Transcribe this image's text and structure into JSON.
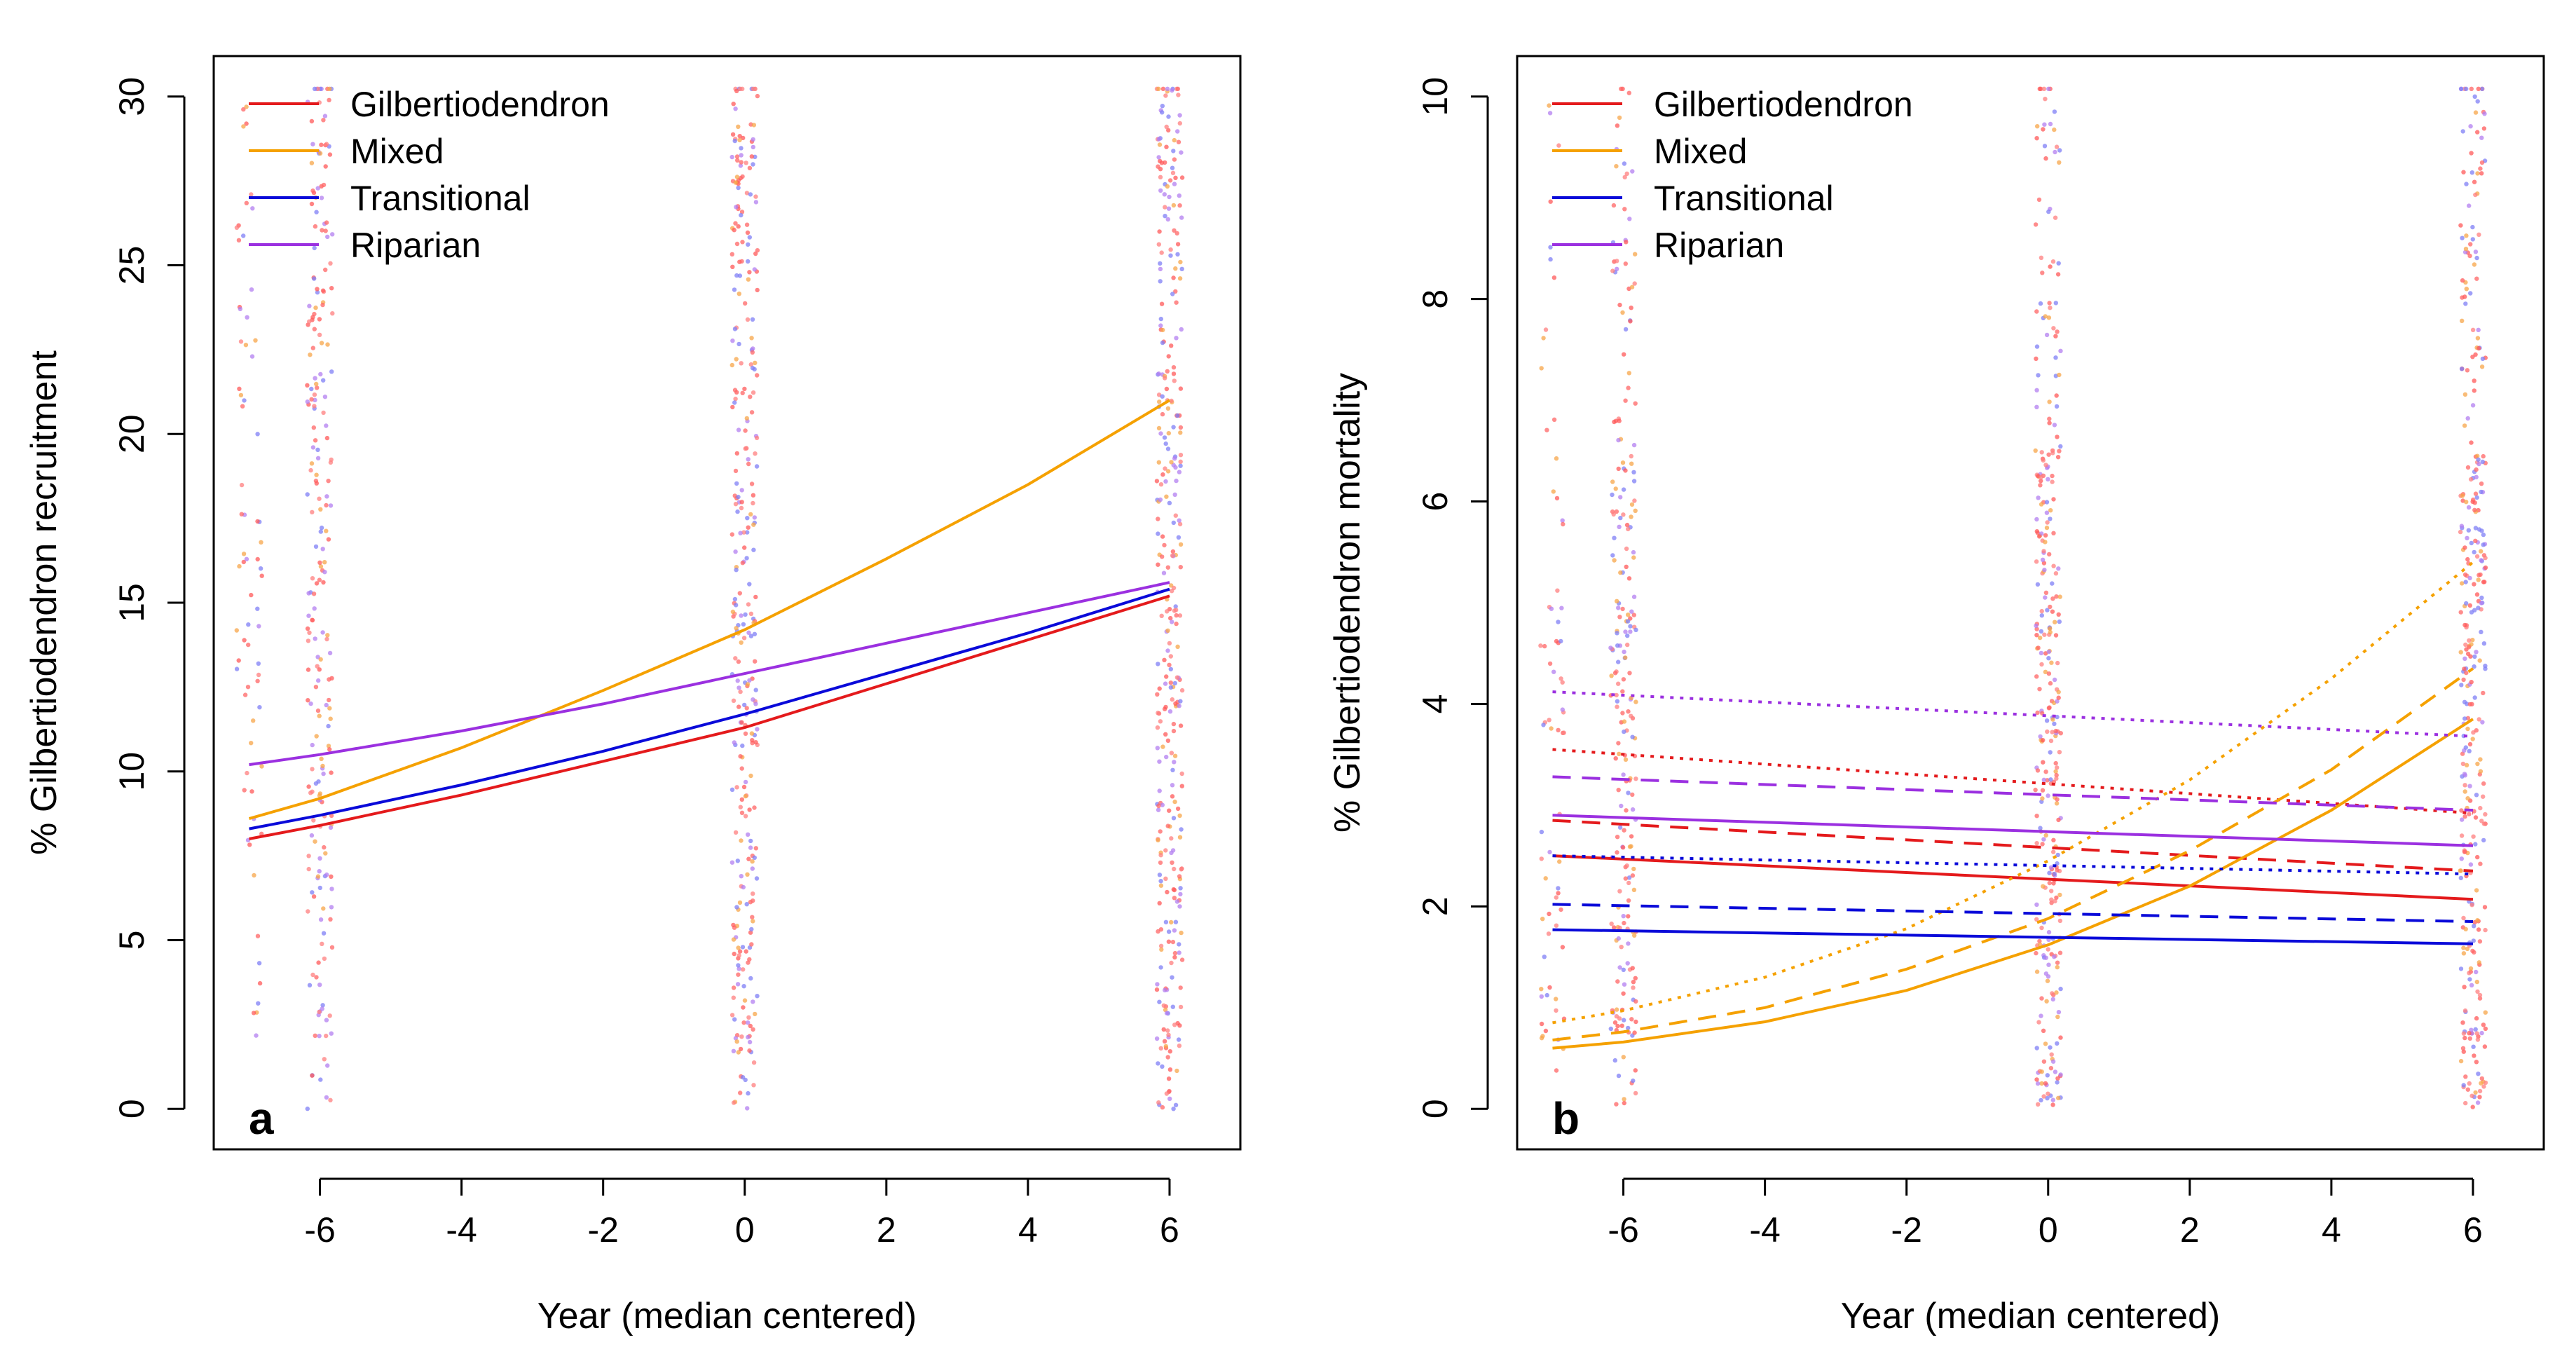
{
  "chart_data": [
    {
      "type": "line",
      "panel_label": "a",
      "xlabel": "Year (median centered)",
      "ylabel": "% Gilbertiodendron recruitment",
      "xlim": [
        -7.5,
        7
      ],
      "ylim": [
        -1.2,
        31.2
      ],
      "xticks": [
        -6,
        -4,
        -2,
        0,
        2,
        4,
        6
      ],
      "yticks": [
        0,
        5,
        10,
        15,
        20,
        25,
        30
      ],
      "legend_position": "top-left",
      "legend": [
        {
          "label": "Gilbertiodendron",
          "color": "#e41a1c"
        },
        {
          "label": "Mixed",
          "color": "#f5a100"
        },
        {
          "label": "Transitional",
          "color": "#0a0ad9"
        },
        {
          "label": "Riparian",
          "color": "#9b30e0"
        }
      ],
      "series": [
        {
          "name": "Gilbertiodendron",
          "color": "#e41a1c",
          "style": "solid",
          "x": [
            -7,
            -6,
            -4,
            -2,
            0,
            2,
            4,
            6
          ],
          "y": [
            8.0,
            8.4,
            9.3,
            10.3,
            11.3,
            12.6,
            13.9,
            15.2
          ]
        },
        {
          "name": "Mixed",
          "color": "#f5a100",
          "style": "solid",
          "x": [
            -7,
            -6,
            -4,
            -2,
            0,
            2,
            4,
            6
          ],
          "y": [
            8.6,
            9.2,
            10.7,
            12.4,
            14.2,
            16.3,
            18.5,
            21.0
          ]
        },
        {
          "name": "Transitional",
          "color": "#0a0ad9",
          "style": "solid",
          "x": [
            -7,
            -6,
            -4,
            -2,
            0,
            2,
            4,
            6
          ],
          "y": [
            8.3,
            8.7,
            9.6,
            10.6,
            11.7,
            12.9,
            14.1,
            15.4
          ]
        },
        {
          "name": "Riparian",
          "color": "#9b30e0",
          "style": "solid",
          "x": [
            -7,
            -6,
            -4,
            -2,
            0,
            2,
            4,
            6
          ],
          "y": [
            10.2,
            10.5,
            11.2,
            12.0,
            12.9,
            13.8,
            14.7,
            15.6
          ]
        }
      ]
    },
    {
      "type": "line",
      "panel_label": "b",
      "xlabel": "Year (median centered)",
      "ylabel": "% Gilbertiodendron mortality",
      "xlim": [
        -7.5,
        7
      ],
      "ylim": [
        -0.4,
        10.4
      ],
      "xticks": [
        -6,
        -4,
        -2,
        0,
        2,
        4,
        6
      ],
      "yticks": [
        0,
        2,
        4,
        6,
        8,
        10
      ],
      "legend_position": "top-left",
      "legend": [
        {
          "label": "Gilbertiodendron",
          "color": "#e41a1c"
        },
        {
          "label": "Mixed",
          "color": "#f5a100"
        },
        {
          "label": "Transitional",
          "color": "#0a0ad9"
        },
        {
          "label": "Riparian",
          "color": "#9b30e0"
        }
      ],
      "series": [
        {
          "name": "Gilbertiodendron",
          "color": "#e41a1c",
          "style": "solid",
          "x": [
            -7,
            6
          ],
          "y": [
            2.5,
            2.07
          ]
        },
        {
          "name": "Gilbertiodendron",
          "color": "#e41a1c",
          "style": "dashed",
          "x": [
            -7,
            6
          ],
          "y": [
            2.85,
            2.35
          ]
        },
        {
          "name": "Gilbertiodendron",
          "color": "#e41a1c",
          "style": "dotted",
          "x": [
            -7,
            6
          ],
          "y": [
            3.55,
            2.92
          ]
        },
        {
          "name": "Mixed",
          "color": "#f5a100",
          "style": "solid",
          "x": [
            -7,
            -6,
            -4,
            -2,
            0,
            2,
            4,
            6
          ],
          "y": [
            0.6,
            0.66,
            0.86,
            1.17,
            1.62,
            2.2,
            2.95,
            3.85
          ]
        },
        {
          "name": "Mixed",
          "color": "#f5a100",
          "style": "dashed",
          "x": [
            -7,
            -6,
            -4,
            -2,
            0,
            2,
            4,
            6
          ],
          "y": [
            0.68,
            0.76,
            1.0,
            1.38,
            1.88,
            2.55,
            3.35,
            4.35
          ]
        },
        {
          "name": "Mixed",
          "color": "#f5a100",
          "style": "dotted",
          "x": [
            -7,
            -6,
            -4,
            -2,
            0,
            2,
            4,
            6
          ],
          "y": [
            0.85,
            0.97,
            1.3,
            1.78,
            2.45,
            3.25,
            4.25,
            5.4
          ]
        },
        {
          "name": "Transitional",
          "color": "#0a0ad9",
          "style": "solid",
          "x": [
            -7,
            6
          ],
          "y": [
            1.77,
            1.63
          ]
        },
        {
          "name": "Transitional",
          "color": "#0a0ad9",
          "style": "dashed",
          "x": [
            -7,
            6
          ],
          "y": [
            2.02,
            1.85
          ]
        },
        {
          "name": "Transitional",
          "color": "#0a0ad9",
          "style": "dotted",
          "x": [
            -7,
            6
          ],
          "y": [
            2.5,
            2.32
          ]
        },
        {
          "name": "Riparian",
          "color": "#9b30e0",
          "style": "solid",
          "x": [
            -7,
            6
          ],
          "y": [
            2.9,
            2.6
          ]
        },
        {
          "name": "Riparian",
          "color": "#9b30e0",
          "style": "dashed",
          "x": [
            -7,
            6
          ],
          "y": [
            3.28,
            2.95
          ]
        },
        {
          "name": "Riparian",
          "color": "#9b30e0",
          "style": "dotted",
          "x": [
            -7,
            6
          ],
          "y": [
            4.12,
            3.68
          ]
        }
      ]
    }
  ]
}
